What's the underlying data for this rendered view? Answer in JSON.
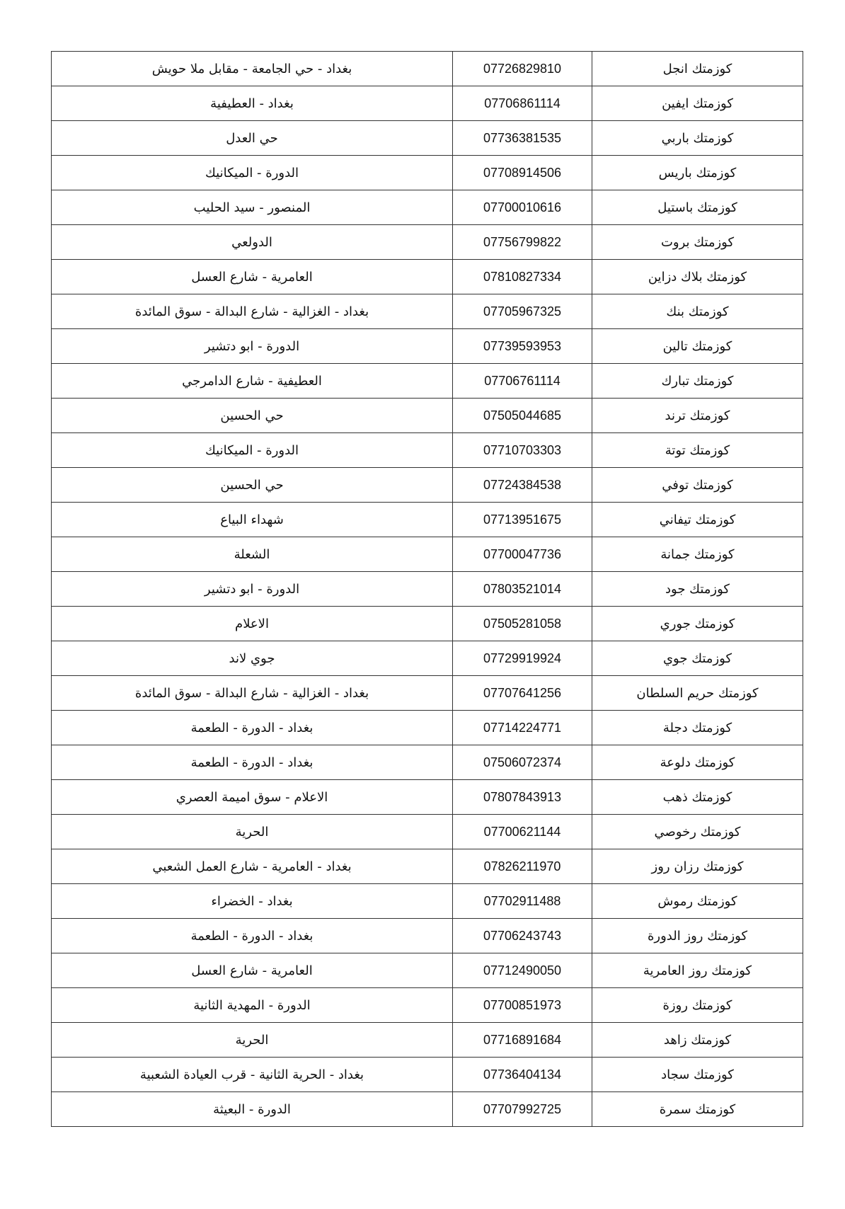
{
  "rows": [
    {
      "name": "كوزمتك انجل",
      "phone": "07726829810",
      "address": "بغداد - حي الجامعة - مقابل ملا حويش"
    },
    {
      "name": "كوزمتك ايفين",
      "phone": "07706861114",
      "address": "بغداد - العطيفية"
    },
    {
      "name": "كوزمتك باربي",
      "phone": "07736381535",
      "address": "حي العدل"
    },
    {
      "name": "كوزمتك باريس",
      "phone": "07708914506",
      "address": "الدورة - الميكانيك"
    },
    {
      "name": "كوزمتك باستيل",
      "phone": "07700010616",
      "address": "المنصور - سيد الحليب"
    },
    {
      "name": "كوزمتك بروت",
      "phone": "07756799822",
      "address": "الدولعي"
    },
    {
      "name": "كوزمتك بلاك دزاين",
      "phone": "07810827334",
      "address": "العامرية - شارع العسل"
    },
    {
      "name": "كوزمتك بنك",
      "phone": "07705967325",
      "address": "بغداد - الغزالية - شارع البدالة - سوق المائدة"
    },
    {
      "name": "كوزمتك تالين",
      "phone": "07739593953",
      "address": "الدورة - ابو دتشير"
    },
    {
      "name": "كوزمتك تبارك",
      "phone": "07706761114",
      "address": "العطيفية - شارع الدامرجي"
    },
    {
      "name": "كوزمتك ترند",
      "phone": "07505044685",
      "address": "حي الحسين"
    },
    {
      "name": "كوزمتك توتة",
      "phone": "07710703303",
      "address": "الدورة - الميكانيك"
    },
    {
      "name": "كوزمتك توفي",
      "phone": "07724384538",
      "address": "حي الحسين"
    },
    {
      "name": "كوزمتك تيفاني",
      "phone": "07713951675",
      "address": "شهداء البياع"
    },
    {
      "name": "كوزمتك جمانة",
      "phone": "07700047736",
      "address": "الشعلة"
    },
    {
      "name": "كوزمتك جود",
      "phone": "07803521014",
      "address": "الدورة - ابو دتشير"
    },
    {
      "name": "كوزمتك جوري",
      "phone": "07505281058",
      "address": "الاعلام"
    },
    {
      "name": "كوزمتك جوي",
      "phone": "07729919924",
      "address": "جوي لاند"
    },
    {
      "name": "كوزمتك حريم السلطان",
      "phone": "07707641256",
      "address": "بغداد - الغزالية - شارع البدالة - سوق المائدة"
    },
    {
      "name": "كوزمتك دجلة",
      "phone": "07714224771",
      "address": "بغداد - الدورة - الطعمة"
    },
    {
      "name": "كوزمتك دلوعة",
      "phone": "07506072374",
      "address": "بغداد - الدورة - الطعمة"
    },
    {
      "name": "كوزمتك ذهب",
      "phone": "07807843913",
      "address": "الاعلام - سوق اميمة العصري"
    },
    {
      "name": "كوزمتك رخوصي",
      "phone": "07700621144",
      "address": "الحرية"
    },
    {
      "name": "كوزمتك رزان روز",
      "phone": "07826211970",
      "address": "بغداد - العامرية - شارع العمل الشعبي"
    },
    {
      "name": "كوزمتك رموش",
      "phone": "07702911488",
      "address": "بغداد - الخضراء"
    },
    {
      "name": "كوزمتك روز الدورة",
      "phone": "07706243743",
      "address": "بغداد - الدورة - الطعمة"
    },
    {
      "name": "كوزمتك روز العامرية",
      "phone": "07712490050",
      "address": "العامرية - شارع العسل"
    },
    {
      "name": "كوزمتك روزة",
      "phone": "07700851973",
      "address": "الدورة - المهدية الثانية"
    },
    {
      "name": "كوزمتك زاهد",
      "phone": "07716891684",
      "address": "الحرية"
    },
    {
      "name": "كوزمتك سجاد",
      "phone": "07736404134",
      "address": "بغداد - الحرية الثانية - قرب العيادة الشعبية"
    },
    {
      "name": "كوزمتك سمرة",
      "phone": "07707992725",
      "address": "الدورة - البعيثة"
    }
  ]
}
